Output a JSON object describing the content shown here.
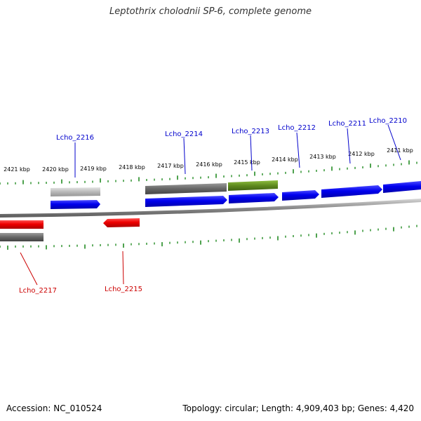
{
  "title": "Leptothrix cholodnii SP-6, complete genome",
  "footer": {
    "accession": "Accession: NC_010524",
    "summary": "Topology: circular; Length: 4,909,403 bp; Genes: 4,420"
  },
  "colors": {
    "forward_gene": "#0000ee",
    "reverse_gene": "#ee0000",
    "gray_feature": "#6a6a6a",
    "light_gray_feature": "#b8b8b8",
    "olive_feature": "#5e8a1e",
    "tick": "#228b22",
    "backbone": "#808080"
  },
  "scale": {
    "labels": [
      "2421 kbp",
      "2420 kbp",
      "2419 kbp",
      "2418 kbp",
      "2417 kbp",
      "2416 kbp",
      "2415 kbp",
      "2414 kbp",
      "2413 kbp",
      "2412 kbp",
      "2411 kbp"
    ]
  },
  "genes": {
    "top": [
      {
        "label": "Lcho_2216",
        "color": "#0000cc"
      },
      {
        "label": "Lcho_2214",
        "color": "#0000cc"
      },
      {
        "label": "Lcho_2213",
        "color": "#0000cc"
      },
      {
        "label": "Lcho_2212",
        "color": "#0000cc"
      },
      {
        "label": "Lcho_2211",
        "color": "#0000cc"
      },
      {
        "label": "Lcho_2210",
        "color": "#0000cc"
      }
    ],
    "bottom": [
      {
        "label": "Lcho_2217",
        "color": "#cc0000"
      },
      {
        "label": "Lcho_2215",
        "color": "#cc0000"
      }
    ]
  }
}
